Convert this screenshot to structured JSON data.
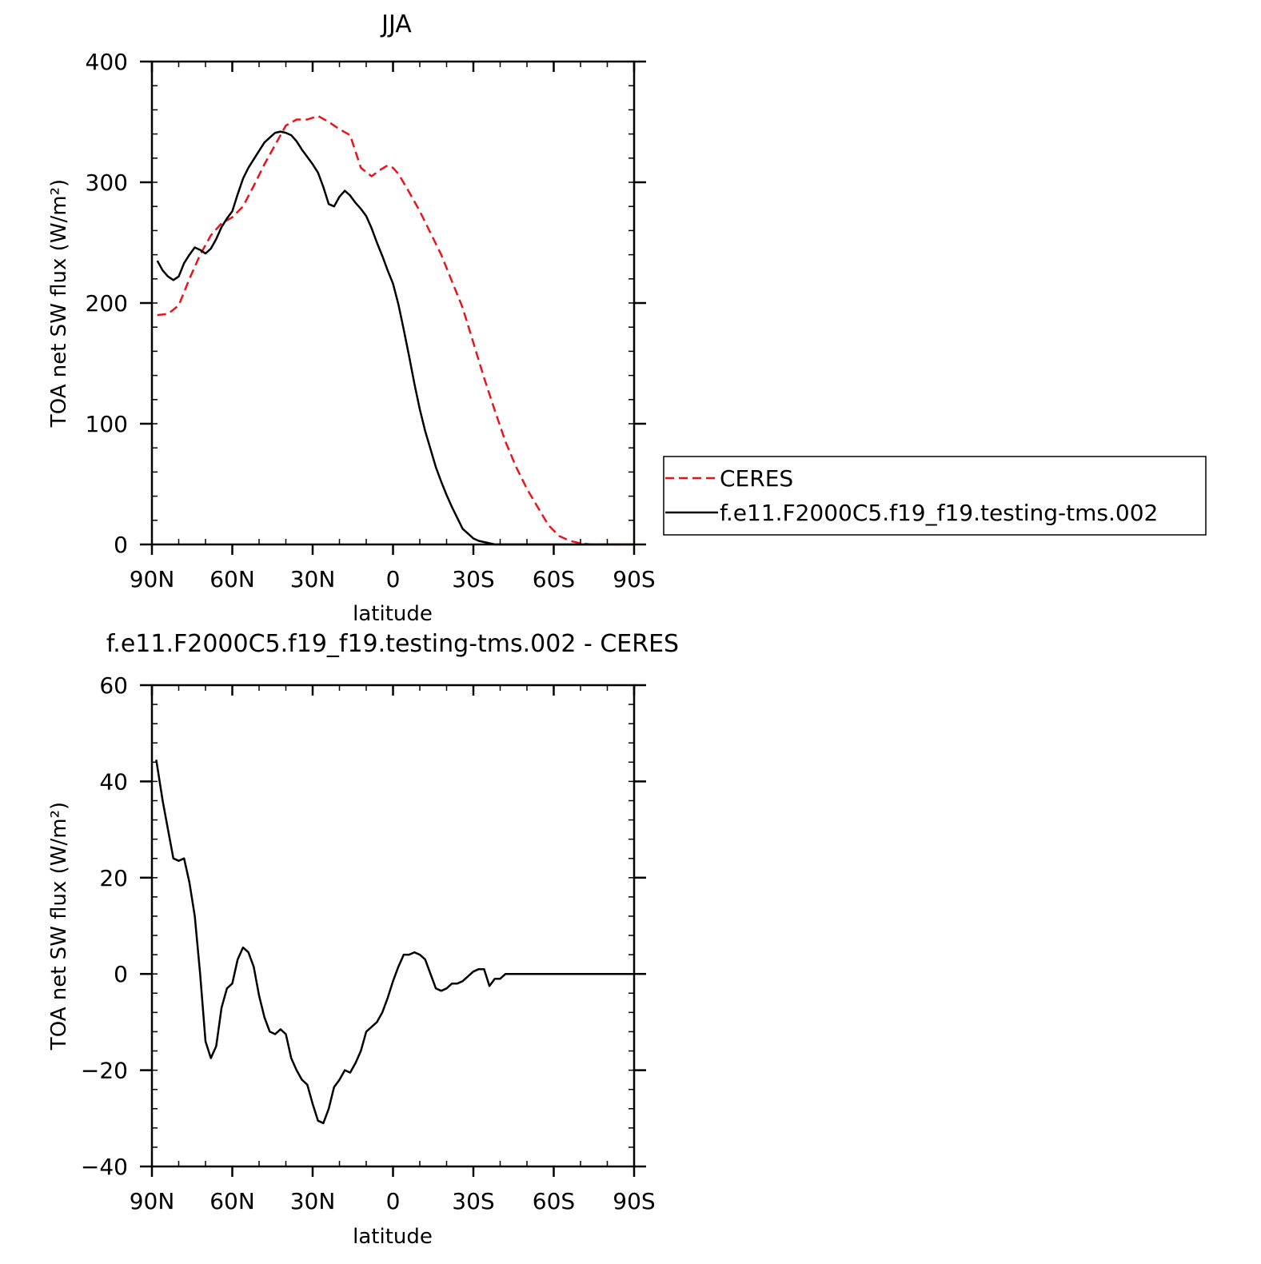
{
  "chart_data": [
    {
      "type": "line",
      "title": "JJA",
      "xlabel": "latitude",
      "ylabel": "TOA net SW flux (W/m²)",
      "xlim": [
        90,
        -90
      ],
      "ylim": [
        0,
        400
      ],
      "x_ticks": [
        90,
        60,
        30,
        0,
        -30,
        -60,
        -90
      ],
      "x_tick_labels": [
        "90N",
        "60N",
        "30N",
        "0",
        "30S",
        "60S",
        "90S"
      ],
      "y_ticks": [
        0,
        100,
        200,
        300,
        400
      ],
      "y_tick_labels": [
        "0",
        "100",
        "200",
        "300",
        "400"
      ],
      "grid": false,
      "legend_position": "right",
      "series": [
        {
          "name": "CERES",
          "color": "#e8141c",
          "dash": "dashed",
          "x": [
            88,
            84,
            80,
            76,
            72,
            68,
            64,
            60,
            56,
            52,
            48,
            44,
            40,
            36,
            32,
            28,
            24,
            20,
            16,
            12,
            8,
            5,
            2,
            0,
            -2,
            -6,
            -10,
            -14,
            -18,
            -22,
            -26,
            -30,
            -34,
            -38,
            -42,
            -46,
            -50,
            -54,
            -58,
            -62,
            -66,
            -70,
            -74,
            -78,
            -82,
            -86,
            -90
          ],
          "y": [
            190,
            191,
            198,
            220,
            240,
            256,
            266,
            271,
            280,
            297,
            315,
            331,
            347,
            352,
            352,
            355,
            350,
            344,
            339,
            312,
            305,
            310,
            314,
            312,
            307,
            292,
            276,
            258,
            240,
            218,
            196,
            167,
            138,
            111,
            85,
            64,
            46,
            31,
            16,
            7,
            3,
            1,
            0,
            0,
            0,
            0,
            0
          ]
        },
        {
          "name": "f.e11.F2000C5.f19_f19.testing-tms.002",
          "color": "#000000",
          "dash": "solid",
          "x": [
            88,
            86,
            84,
            82,
            80,
            78,
            76,
            74,
            72,
            70,
            68,
            66,
            64,
            62,
            60,
            58,
            56,
            54,
            52,
            50,
            48,
            46,
            44,
            42,
            40,
            38,
            36,
            34,
            32,
            30,
            28,
            26,
            24,
            22,
            20,
            18,
            16,
            14,
            12,
            10,
            8,
            6,
            4,
            2,
            0,
            -2,
            -4,
            -6,
            -8,
            -10,
            -12,
            -14,
            -16,
            -18,
            -20,
            -22,
            -24,
            -26,
            -28,
            -30,
            -32,
            -34,
            -36,
            -38,
            -40,
            -42,
            -44,
            -46,
            -48,
            -50,
            -52,
            -54,
            -56,
            -58,
            -60,
            -62,
            -64,
            -66,
            -68,
            -70,
            -72,
            -74,
            -76,
            -78,
            -80,
            -82,
            -84,
            -86,
            -88,
            -90
          ],
          "y": [
            235,
            227,
            222,
            219,
            222,
            233,
            240,
            246,
            244,
            241,
            245,
            253,
            263,
            270,
            276,
            290,
            303,
            312,
            319,
            326,
            333,
            337,
            341,
            342,
            341,
            339,
            334,
            327,
            321,
            315,
            308,
            296,
            282,
            280,
            288,
            293,
            289,
            283,
            278,
            272,
            262,
            250,
            239,
            227,
            216,
            199,
            178,
            156,
            133,
            112,
            94,
            79,
            64,
            52,
            41,
            31,
            22,
            13,
            9,
            5,
            3,
            2,
            1,
            0,
            0,
            0,
            0,
            0,
            0,
            0,
            0,
            0,
            0,
            0,
            0,
            0,
            0,
            0,
            0,
            0,
            0,
            0,
            0,
            0,
            0,
            0,
            0,
            0,
            0,
            0
          ]
        }
      ]
    },
    {
      "type": "line",
      "title": "f.e11.F2000C5.f19_f19.testing-tms.002 - CERES",
      "xlabel": "latitude",
      "ylabel": "TOA net SW flux (W/m²)",
      "xlim": [
        90,
        -90
      ],
      "ylim": [
        -40,
        60
      ],
      "x_ticks": [
        90,
        60,
        30,
        0,
        -30,
        -60,
        -90
      ],
      "x_tick_labels": [
        "90N",
        "60N",
        "30N",
        "0",
        "30S",
        "60S",
        "90S"
      ],
      "y_ticks": [
        -40,
        -20,
        0,
        20,
        40,
        60
      ],
      "y_tick_labels": [
        "−40",
        "−20",
        "0",
        "20",
        "40",
        "60"
      ],
      "grid": false,
      "series": [
        {
          "color": "#000000",
          "dash": "solid",
          "x": [
            88.4,
            86,
            84,
            82,
            80,
            78,
            76,
            74,
            72,
            70,
            68,
            66,
            64,
            62,
            60,
            58,
            56,
            54,
            52,
            50,
            48,
            46,
            44,
            42,
            40,
            38,
            36,
            34,
            32,
            30,
            28,
            26,
            24,
            22,
            20,
            18,
            16,
            14,
            12,
            10,
            8,
            6,
            4,
            2,
            0,
            -2,
            -4,
            -6,
            -8,
            -10,
            -12,
            -14,
            -16,
            -18,
            -20,
            -22,
            -24,
            -26,
            -28,
            -30,
            -32,
            -34,
            -36,
            -38,
            -40,
            -42,
            -44,
            -46,
            -48,
            -50,
            -52,
            -54,
            -56,
            -58,
            -60,
            -62,
            -64,
            -66,
            -68,
            -70,
            -72,
            -74,
            -76,
            -78,
            -80,
            -82,
            -84,
            -86,
            -88,
            -90
          ],
          "y": [
            44.5,
            36,
            30,
            24,
            23.5,
            24,
            19,
            12,
            0,
            -14,
            -17.5,
            -15,
            -7,
            -3,
            -2,
            3,
            5.5,
            4.5,
            1.5,
            -4.5,
            -9,
            -12,
            -12.5,
            -11.5,
            -12.5,
            -17.5,
            -20,
            -22,
            -23,
            -27,
            -30.5,
            -31,
            -28,
            -23.5,
            -22,
            -20,
            -20.5,
            -18.5,
            -16,
            -12,
            -11,
            -10,
            -8,
            -5,
            -1.5,
            1.5,
            4,
            4,
            4.5,
            4,
            3,
            0,
            -3,
            -3.5,
            -3,
            -2,
            -2,
            -1.5,
            -0.5,
            0.5,
            1,
            1,
            -2.5,
            -1,
            -1,
            0,
            0,
            0,
            0,
            0,
            0,
            0,
            0,
            0,
            0,
            0,
            0,
            0,
            0,
            0,
            0,
            0,
            0,
            0,
            0,
            0,
            0,
            0,
            0,
            0
          ]
        }
      ]
    }
  ]
}
